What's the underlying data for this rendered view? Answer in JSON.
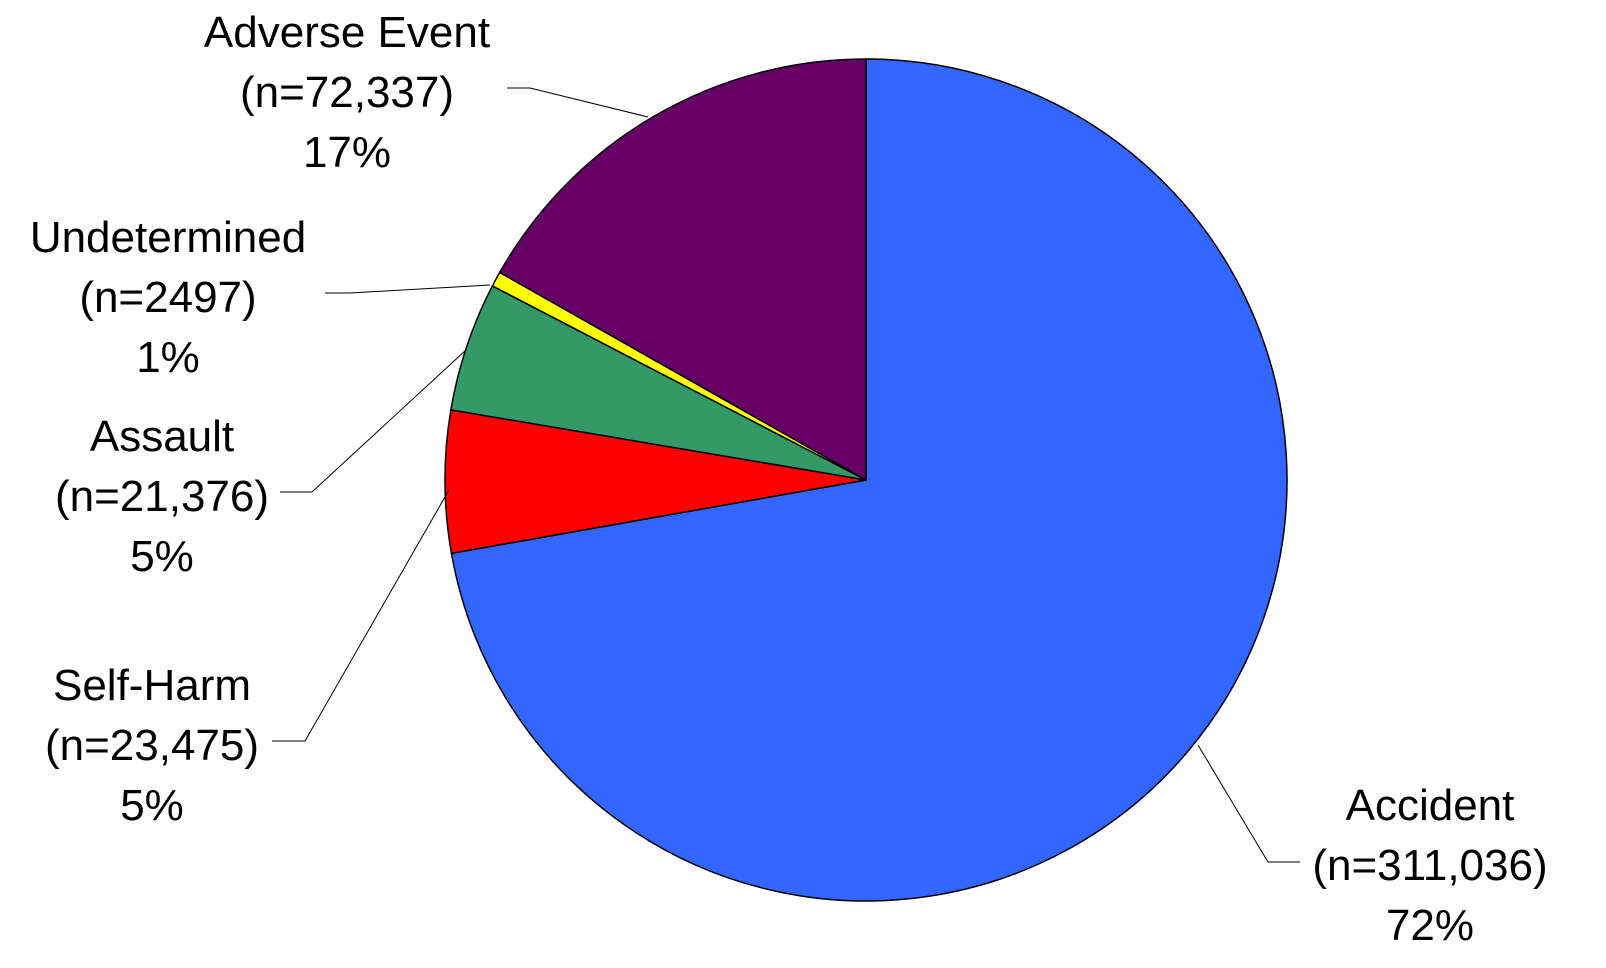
{
  "chart_data": {
    "type": "pie",
    "title": "",
    "slices": [
      {
        "name": "Accident",
        "count": "(n=311,036)",
        "value": 311036,
        "percent": "72%",
        "color": "#3366FF"
      },
      {
        "name": "Self-Harm",
        "count": "(n=23,475)",
        "value": 23475,
        "percent": "5%",
        "color": "#FF0000"
      },
      {
        "name": "Assault",
        "count": "(n=21,376)",
        "value": 21376,
        "percent": "5%",
        "color": "#339966"
      },
      {
        "name": "Undetermined",
        "count": "(n=2497)",
        "value": 2497,
        "percent": "1%",
        "color": "#FFFF00"
      },
      {
        "name": "Adverse Event",
        "count": "(n=72,337)",
        "value": 72337,
        "percent": "17%",
        "color": "#660066"
      }
    ],
    "start": "12 o'clock",
    "direction": "clockwise"
  }
}
